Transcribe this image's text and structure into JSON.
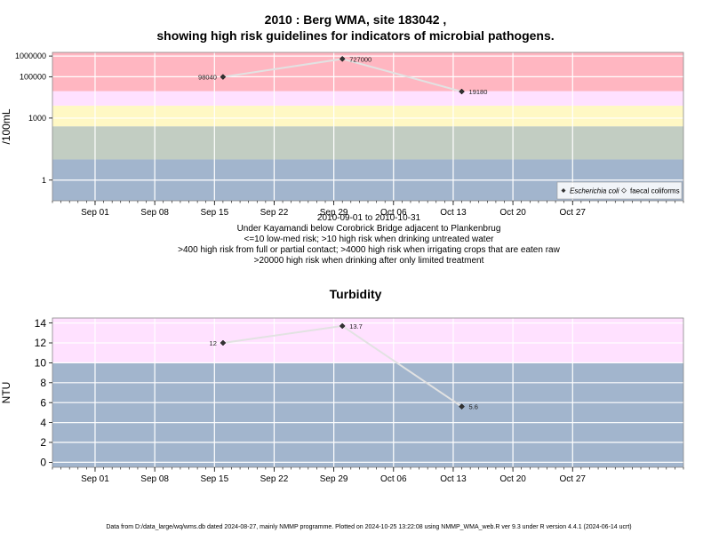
{
  "chart_data": [
    {
      "type": "line",
      "title": "2010 : Berg WMA, site 183042 ,",
      "title2": "showing high risk guidelines for indicators of microbial pathogens.",
      "ylabel": "/100mL",
      "yscale": "log",
      "ylim": [
        0.1,
        1500000
      ],
      "xlim": [
        "2010-08-27",
        "2010-11-09"
      ],
      "x_ticks": [
        "Sep 01",
        "Sep 08",
        "Sep 15",
        "Sep 22",
        "Sep 29",
        "Oct 06",
        "Oct 13",
        "Oct 20",
        "Oct 27"
      ],
      "x_tick_dates": [
        "2010-09-01",
        "2010-09-08",
        "2010-09-15",
        "2010-09-22",
        "2010-09-29",
        "2010-10-06",
        "2010-10-13",
        "2010-10-20",
        "2010-10-27"
      ],
      "y_ticks": [
        "1",
        "1000",
        "100000",
        "1000000"
      ],
      "y_tick_values": [
        1,
        1000,
        100000,
        1000000
      ],
      "grid": true,
      "bands": [
        {
          "from": 0.1,
          "to": 10,
          "color": "#a2b5cd"
        },
        {
          "from": 10,
          "to": 400,
          "color": "#c2cdc2"
        },
        {
          "from": 400,
          "to": 4000,
          "color": "#fff8c4"
        },
        {
          "from": 4000,
          "to": 20000,
          "color": "#ffe1ff"
        },
        {
          "from": 20000,
          "to": 1500000,
          "color": "#ffb6c1"
        }
      ],
      "series": [
        {
          "name": "Escherichia coli",
          "x": [
            "2010-09-16",
            "2010-09-30",
            "2010-10-14"
          ],
          "y": [
            98040,
            727000,
            19180
          ],
          "labels": [
            "98040",
            "727000",
            "19180"
          ]
        }
      ],
      "legend": {
        "position": "bottom-right",
        "entries": [
          "Escherichia coli",
          "faecal coliforms"
        ]
      },
      "date_range": "2010-09-01 to 2010-10-31",
      "annotations": [
        "Under Kayamandi below Corobrick Bridge adjacent to Plankenbrug",
        "<=10 low-med risk; >10 high risk when drinking untreated water",
        ">400 high risk from full or partial contact; >4000 high risk when irrigating crops that are eaten raw",
        ">20000 high risk when drinking after only limited treatment"
      ]
    },
    {
      "type": "line",
      "title": "Turbidity",
      "ylabel": "NTU",
      "ylim": [
        -0.5,
        14.5
      ],
      "xlim": [
        "2010-08-27",
        "2010-11-09"
      ],
      "x_ticks": [
        "Sep 01",
        "Sep 08",
        "Sep 15",
        "Sep 22",
        "Sep 29",
        "Oct 06",
        "Oct 13",
        "Oct 20",
        "Oct 27"
      ],
      "x_tick_dates": [
        "2010-09-01",
        "2010-09-08",
        "2010-09-15",
        "2010-09-22",
        "2010-09-29",
        "2010-10-06",
        "2010-10-13",
        "2010-10-20",
        "2010-10-27"
      ],
      "y_ticks": [
        "0",
        "2",
        "4",
        "6",
        "8",
        "10",
        "12",
        "14"
      ],
      "y_tick_values": [
        0,
        2,
        4,
        6,
        8,
        10,
        12,
        14
      ],
      "grid": true,
      "bands": [
        {
          "from": -0.5,
          "to": 10,
          "color": "#a2b5cd"
        },
        {
          "from": 10,
          "to": 14.5,
          "color": "#ffe1ff"
        }
      ],
      "series": [
        {
          "x": [
            "2010-09-16",
            "2010-09-30",
            "2010-10-14"
          ],
          "y": [
            12,
            13.7,
            5.6
          ],
          "labels": [
            "12",
            "13.7",
            "5.6"
          ]
        }
      ]
    }
  ],
  "footer": "Data from D:/data_large/wq/wms.db dated 2024-08-27, mainly NMMP programme. Plotted on 2024-10-25 13:22:08 using NMMP_WMA_web.R ver 9.3 under R version 4.4.1 (2024-06-14 ucrt)"
}
